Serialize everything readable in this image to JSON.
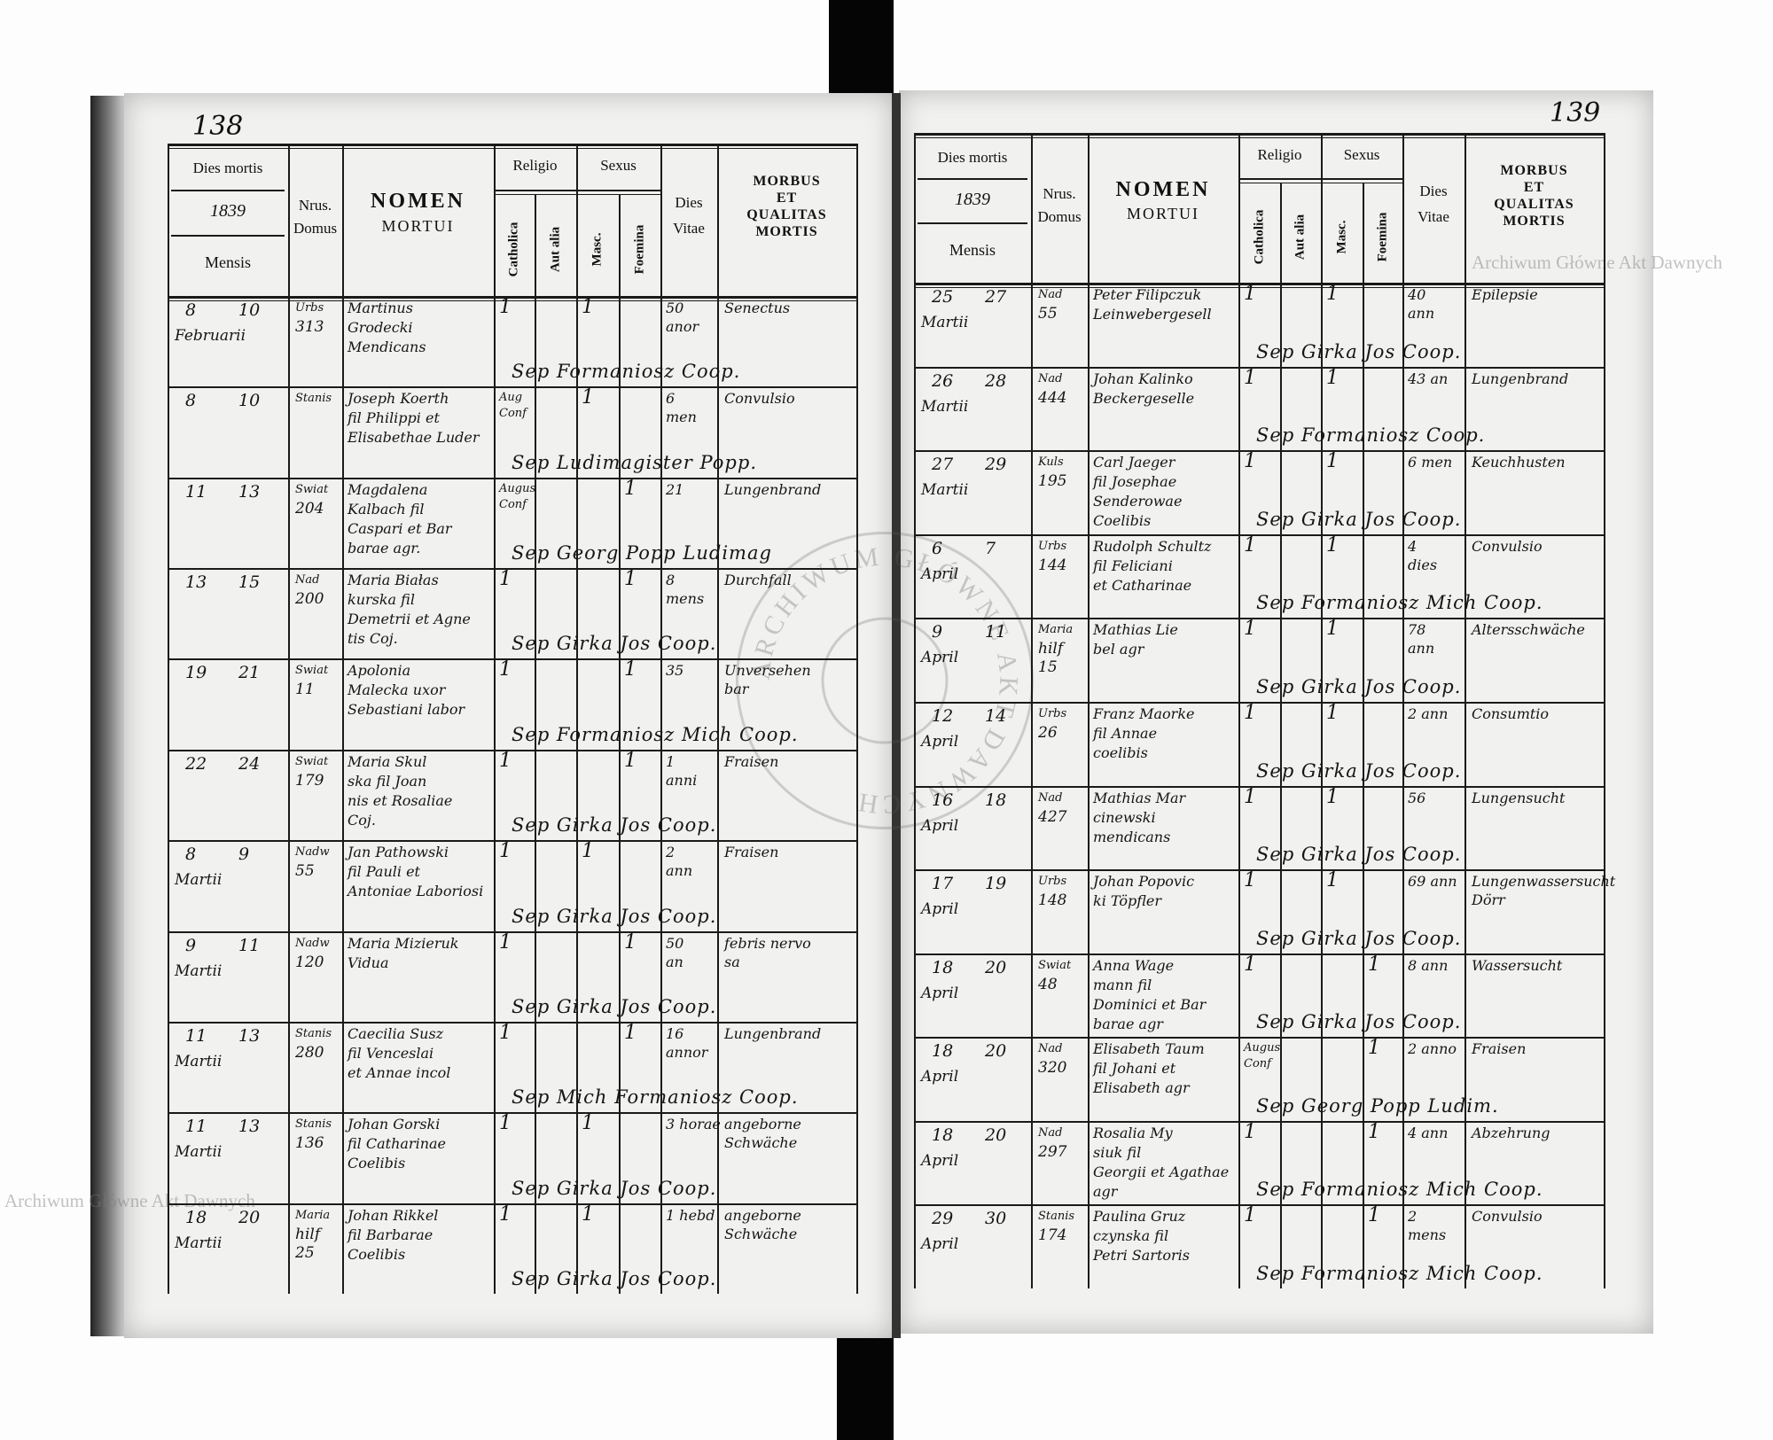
{
  "watermark": "Archiwum Główne Akt Dawnych",
  "seal_text": "ARCHIWUM GŁÓWNE AKT DAWNYCH",
  "header": {
    "dies_mortis": "Dies mortis",
    "year": "1839",
    "mensis": "Mensis",
    "nrus": "Nrus.",
    "domus": "Domus",
    "nomen": "NOMEN",
    "mortui": "MORTUI",
    "religio": "Religio",
    "catholica": "Catholica",
    "aut_alia": "Aut alia",
    "sexus": "Sexus",
    "masc": "Masc.",
    "foemina": "Foemina",
    "dies": "Dies",
    "vitae": "Vitae",
    "morbus": "MORBUS",
    "et": "ET",
    "qualitas": "QUALITAS",
    "mortis": "MORTIS"
  },
  "pages": [
    {
      "number": "138",
      "rows": [
        {
          "d": "8",
          "d2": "10",
          "m": "Februarii",
          "domus": [
            "Urbs",
            "313"
          ],
          "nomen": [
            "Martinus",
            "Grodecki",
            "Mendicans"
          ],
          "cath": "1",
          "aut": "",
          "masc": "1",
          "foem": "",
          "vitae": [
            "50",
            "anor"
          ],
          "morbus": [
            "Senectus"
          ],
          "sep": "Sep  Formaniosz  Coop."
        },
        {
          "d": "8",
          "d2": "10",
          "m": "",
          "domus": [
            "Stanis",
            ""
          ],
          "nomen": [
            "Joseph Koerth",
            "fil Philippi et",
            "Elisabethae Luder"
          ],
          "cath": "Aug Conf",
          "aut": "",
          "masc": "1",
          "foem": "",
          "vitae": [
            "6",
            "men"
          ],
          "morbus": [
            "Convulsio"
          ],
          "sep": "Sep  Ludimagister  Popp."
        },
        {
          "d": "11",
          "d2": "13",
          "m": "",
          "domus": [
            "Swiat",
            "204"
          ],
          "nomen": [
            "Magdalena",
            "Kalbach fil",
            "Caspari et Bar",
            "barae agr."
          ],
          "cath": "Augus Conf",
          "aut": "",
          "masc": "",
          "foem": "1",
          "vitae": [
            "21"
          ],
          "morbus": [
            "Lungenbrand"
          ],
          "sep": "Sep  Georg  Popp  Ludimag"
        },
        {
          "d": "13",
          "d2": "15",
          "m": "",
          "domus": [
            "Nad",
            "200"
          ],
          "nomen": [
            "Maria Białas",
            "kurska fil",
            "Demetrii et Agne",
            "tis Coj."
          ],
          "cath": "1",
          "aut": "",
          "masc": "",
          "foem": "1",
          "vitae": [
            "8",
            "mens"
          ],
          "morbus": [
            "Durchfall"
          ],
          "sep": "Sep  Girka  Jos  Coop."
        },
        {
          "d": "19",
          "d2": "21",
          "m": "",
          "domus": [
            "Swiat",
            "11"
          ],
          "nomen": [
            "Apolonia",
            "Malecka uxor",
            "Sebastiani labor"
          ],
          "cath": "1",
          "aut": "",
          "masc": "",
          "foem": "1",
          "vitae": [
            "35"
          ],
          "morbus": [
            "Unversehen",
            "bar"
          ],
          "sep": "Sep  Formaniosz  Mich  Coop."
        },
        {
          "d": "22",
          "d2": "24",
          "m": "",
          "domus": [
            "Swiat",
            "179"
          ],
          "nomen": [
            "Maria Skul",
            "ska fil Joan",
            "nis et Rosaliae",
            "Coj."
          ],
          "cath": "1",
          "aut": "",
          "masc": "",
          "foem": "1",
          "vitae": [
            "1",
            "anni"
          ],
          "morbus": [
            "Fraisen"
          ],
          "sep": "Sep  Girka  Jos  Coop."
        },
        {
          "d": "8",
          "d2": "9",
          "m": "Martii",
          "domus": [
            "Nadw",
            "55"
          ],
          "nomen": [
            "Jan Pathowski",
            "fil Pauli et",
            "Antoniae Laboriosi"
          ],
          "cath": "1",
          "aut": "",
          "masc": "1",
          "foem": "",
          "vitae": [
            "2",
            "ann"
          ],
          "morbus": [
            "Fraisen"
          ],
          "sep": "Sep  Girka  Jos  Coop."
        },
        {
          "d": "9",
          "d2": "11",
          "m": "Martii",
          "domus": [
            "Nadw",
            "120"
          ],
          "nomen": [
            "Maria Mizieruk",
            "Vidua"
          ],
          "cath": "1",
          "aut": "",
          "masc": "",
          "foem": "1",
          "vitae": [
            "50",
            "an"
          ],
          "morbus": [
            "febris nervo",
            "sa"
          ],
          "sep": "Sep  Girka  Jos  Coop."
        },
        {
          "d": "11",
          "d2": "13",
          "m": "Martii",
          "domus": [
            "Stanis",
            "280"
          ],
          "nomen": [
            "Caecilia Susz",
            "fil Venceslai",
            "et Annae incol"
          ],
          "cath": "1",
          "aut": "",
          "masc": "",
          "foem": "1",
          "vitae": [
            "16",
            "annor"
          ],
          "morbus": [
            "Lungenbrand"
          ],
          "sep": "Sep  Mich  Formaniosz  Coop."
        },
        {
          "d": "11",
          "d2": "13",
          "m": "Martii",
          "domus": [
            "Stanis",
            "136"
          ],
          "nomen": [
            "Johan Gorski",
            "fil Catharinae",
            "Coelibis"
          ],
          "cath": "1",
          "aut": "",
          "masc": "1",
          "foem": "",
          "vitae": [
            "3 horae"
          ],
          "morbus": [
            "angeborne",
            "Schwäche"
          ],
          "sep": "Sep  Girka  Jos  Coop."
        },
        {
          "d": "18",
          "d2": "20",
          "m": "Martii",
          "domus": [
            "Maria",
            "hilf",
            "25"
          ],
          "nomen": [
            "Johan Rikkel",
            "fil Barbarae",
            "Coelibis"
          ],
          "cath": "1",
          "aut": "",
          "masc": "1",
          "foem": "",
          "vitae": [
            "1 hebd"
          ],
          "morbus": [
            "angeborne",
            "Schwäche"
          ],
          "sep": "Sep  Girka  Jos  Coop."
        }
      ]
    },
    {
      "number": "139",
      "rows": [
        {
          "d": "25",
          "d2": "27",
          "m": "Martii",
          "domus": [
            "Nad",
            "55"
          ],
          "nomen": [
            "Peter Filipczuk",
            "Leinwebergesell"
          ],
          "cath": "1",
          "aut": "",
          "masc": "1",
          "foem": "",
          "vitae": [
            "40",
            "ann"
          ],
          "morbus": [
            "Epilepsie"
          ],
          "sep": "Sep  Girka  Jos  Coop."
        },
        {
          "d": "26",
          "d2": "28",
          "m": "Martii",
          "domus": [
            "Nad",
            "444"
          ],
          "nomen": [
            "Johan Kalinko",
            "Beckergeselle"
          ],
          "cath": "1",
          "aut": "",
          "masc": "1",
          "foem": "",
          "vitae": [
            "43 an"
          ],
          "morbus": [
            "Lungenbrand"
          ],
          "sep": "Sep  Formaniosz  Coop."
        },
        {
          "d": "27",
          "d2": "29",
          "m": "Martii",
          "domus": [
            "Kuls",
            "195"
          ],
          "nomen": [
            "Carl Jaeger",
            "fil Josephae",
            "Senderowae",
            "Coelibis"
          ],
          "cath": "1",
          "aut": "",
          "masc": "1",
          "foem": "",
          "vitae": [
            "6 men"
          ],
          "morbus": [
            "Keuchhusten"
          ],
          "sep": "Sep  Girka  Jos  Coop."
        },
        {
          "d": "6",
          "d2": "7",
          "m": "April",
          "domus": [
            "Urbs",
            "144"
          ],
          "nomen": [
            "Rudolph Schultz",
            "fil Feliciani",
            "et Catharinae"
          ],
          "cath": "1",
          "aut": "",
          "masc": "1",
          "foem": "",
          "vitae": [
            "4",
            "dies"
          ],
          "morbus": [
            "Convulsio"
          ],
          "sep": "Sep  Formaniosz  Mich  Coop."
        },
        {
          "d": "9",
          "d2": "11",
          "m": "April",
          "domus": [
            "Maria",
            "hilf",
            "15"
          ],
          "nomen": [
            "Mathias Lie",
            "bel agr"
          ],
          "cath": "1",
          "aut": "",
          "masc": "1",
          "foem": "",
          "vitae": [
            "78",
            "ann"
          ],
          "morbus": [
            "Altersschwäche"
          ],
          "sep": "Sep  Girka  Jos  Coop."
        },
        {
          "d": "12",
          "d2": "14",
          "m": "April",
          "domus": [
            "Urbs",
            "26"
          ],
          "nomen": [
            "Franz Maorke",
            "fil Annae",
            "coelibis"
          ],
          "cath": "1",
          "aut": "",
          "masc": "1",
          "foem": "",
          "vitae": [
            "2 ann"
          ],
          "morbus": [
            "Consumtio"
          ],
          "sep": "Sep  Girka  Jos  Coop."
        },
        {
          "d": "16",
          "d2": "18",
          "m": "April",
          "domus": [
            "Nad",
            "427"
          ],
          "nomen": [
            "Mathias Mar",
            "cinewski",
            "mendicans"
          ],
          "cath": "1",
          "aut": "",
          "masc": "1",
          "foem": "",
          "vitae": [
            "56"
          ],
          "morbus": [
            "Lungensucht"
          ],
          "sep": "Sep  Girka  Jos  Coop."
        },
        {
          "d": "17",
          "d2": "19",
          "m": "April",
          "domus": [
            "Urbs",
            "148"
          ],
          "nomen": [
            "Johan Popovic",
            "ki Töpfler"
          ],
          "cath": "1",
          "aut": "",
          "masc": "1",
          "foem": "",
          "vitae": [
            "69 ann"
          ],
          "morbus": [
            "Lungenwassersucht",
            "Dörr"
          ],
          "sep": "Sep  Girka  Jos  Coop."
        },
        {
          "d": "18",
          "d2": "20",
          "m": "April",
          "domus": [
            "Swiat",
            "48"
          ],
          "nomen": [
            "Anna Wage",
            "mann fil",
            "Dominici et Bar",
            "barae agr"
          ],
          "cath": "1",
          "aut": "",
          "masc": "",
          "foem": "1",
          "vitae": [
            "8 ann"
          ],
          "morbus": [
            "Wassersucht"
          ],
          "sep": "Sep  Girka  Jos  Coop."
        },
        {
          "d": "18",
          "d2": "20",
          "m": "April",
          "domus": [
            "Nad",
            "320"
          ],
          "nomen": [
            "Elisabeth Taum",
            "fil Johani et",
            "Elisabeth agr"
          ],
          "cath": "Augus Conf",
          "aut": "",
          "masc": "",
          "foem": "1",
          "vitae": [
            "2 anno"
          ],
          "morbus": [
            "Fraisen"
          ],
          "sep": "Sep  Georg  Popp  Ludim."
        },
        {
          "d": "18",
          "d2": "20",
          "m": "April",
          "domus": [
            "Nad",
            "297"
          ],
          "nomen": [
            "Rosalia My",
            "siuk fil",
            "Georgii et Agathae",
            "agr"
          ],
          "cath": "1",
          "aut": "",
          "masc": "",
          "foem": "1",
          "vitae": [
            "4 ann"
          ],
          "morbus": [
            "Abzehrung"
          ],
          "sep": "Sep  Formaniosz  Mich  Coop."
        },
        {
          "d": "29",
          "d2": "30",
          "m": "April",
          "domus": [
            "Stanis",
            "174"
          ],
          "nomen": [
            "Paulina Gruz",
            "czynska fil",
            "Petri Sartoris"
          ],
          "cath": "1",
          "aut": "",
          "masc": "",
          "foem": "1",
          "vitae": [
            "2",
            "mens"
          ],
          "morbus": [
            "Convulsio"
          ],
          "sep": "Sep  Formaniosz  Mich  Coop."
        }
      ]
    }
  ]
}
